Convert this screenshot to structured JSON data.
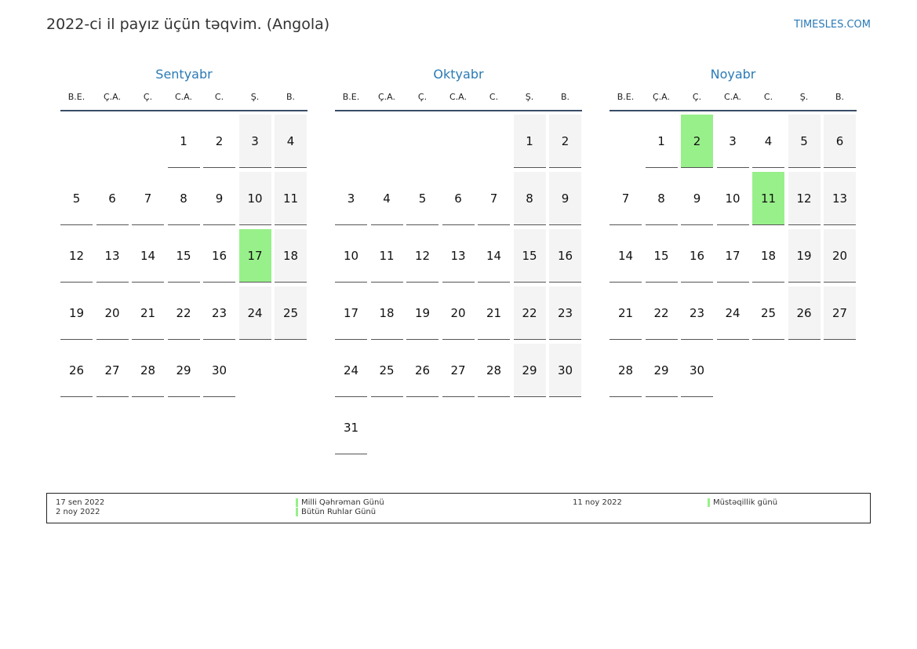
{
  "header": {
    "title": "2022-ci il payız üçün təqvim. (Angola)",
    "site": "TIMESLES.COM"
  },
  "weekdays": [
    "B.E.",
    "Ç.A.",
    "Ç.",
    "C.A.",
    "C.",
    "Ş.",
    "B."
  ],
  "colors": {
    "accent": "#2a7ab6",
    "holiday": "#98f08a",
    "weekend": "#f4f4f4"
  },
  "months": [
    {
      "name": "Sentyabr",
      "offset": 3,
      "days": 30,
      "holidays": [
        17
      ]
    },
    {
      "name": "Oktyabr",
      "offset": 5,
      "days": 31,
      "holidays": []
    },
    {
      "name": "Noyabr",
      "offset": 1,
      "days": 30,
      "holidays": [
        2,
        11
      ]
    }
  ],
  "legend": [
    {
      "date": "17 sen 2022",
      "name": "Milli Qəhrəman Günü"
    },
    {
      "date": "2 noy 2022",
      "name": "Bütün Ruhlar Günü"
    },
    {
      "date": "11 noy 2022",
      "name": "Müstəqillik günü"
    }
  ]
}
